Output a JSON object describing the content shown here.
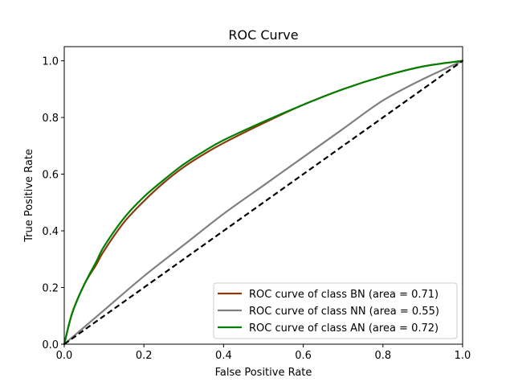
{
  "chart_data": {
    "type": "line",
    "title": "ROC Curve",
    "xlabel": "False Positive Rate",
    "ylabel": "True Positive Rate",
    "xlim": [
      0.0,
      1.0
    ],
    "ylim": [
      0.0,
      1.05
    ],
    "xticks": [
      0.0,
      0.2,
      0.4,
      0.6,
      0.8,
      1.0
    ],
    "yticks": [
      0.0,
      0.2,
      0.4,
      0.6,
      0.8,
      1.0
    ],
    "xtick_labels": [
      "0.0",
      "0.2",
      "0.4",
      "0.6",
      "0.8",
      "1.0"
    ],
    "ytick_labels": [
      "0.0",
      "0.2",
      "0.4",
      "0.6",
      "0.8",
      "1.0"
    ],
    "grid": false,
    "legend_position": "lower-right",
    "series": [
      {
        "name": "ROC curve of class BN (area = 0.71)",
        "color": "#8B3A0F",
        "x": [
          0.0,
          0.02,
          0.05,
          0.08,
          0.1,
          0.15,
          0.2,
          0.25,
          0.3,
          0.35,
          0.4,
          0.5,
          0.6,
          0.7,
          0.8,
          0.9,
          1.0
        ],
        "y": [
          0.0,
          0.11,
          0.21,
          0.28,
          0.33,
          0.43,
          0.505,
          0.57,
          0.625,
          0.67,
          0.71,
          0.78,
          0.845,
          0.9,
          0.945,
          0.98,
          1.0
        ]
      },
      {
        "name": "ROC curve of class NN (area = 0.55)",
        "color": "#808080",
        "x": [
          0.0,
          0.05,
          0.1,
          0.2,
          0.3,
          0.4,
          0.5,
          0.6,
          0.7,
          0.8,
          0.9,
          1.0
        ],
        "y": [
          0.0,
          0.06,
          0.12,
          0.24,
          0.35,
          0.46,
          0.56,
          0.66,
          0.76,
          0.86,
          0.935,
          1.0
        ]
      },
      {
        "name": "ROC curve of class AN (area = 0.72)",
        "color": "#008000",
        "x": [
          0.0,
          0.02,
          0.05,
          0.08,
          0.1,
          0.15,
          0.2,
          0.25,
          0.3,
          0.35,
          0.4,
          0.5,
          0.6,
          0.7,
          0.8,
          0.9,
          1.0
        ],
        "y": [
          0.0,
          0.11,
          0.21,
          0.29,
          0.345,
          0.445,
          0.52,
          0.58,
          0.635,
          0.68,
          0.72,
          0.785,
          0.845,
          0.9,
          0.945,
          0.98,
          1.0
        ]
      }
    ],
    "reference_line": {
      "color": "#000000",
      "x": [
        0.0,
        1.0
      ],
      "y": [
        0.0,
        1.0
      ]
    }
  }
}
